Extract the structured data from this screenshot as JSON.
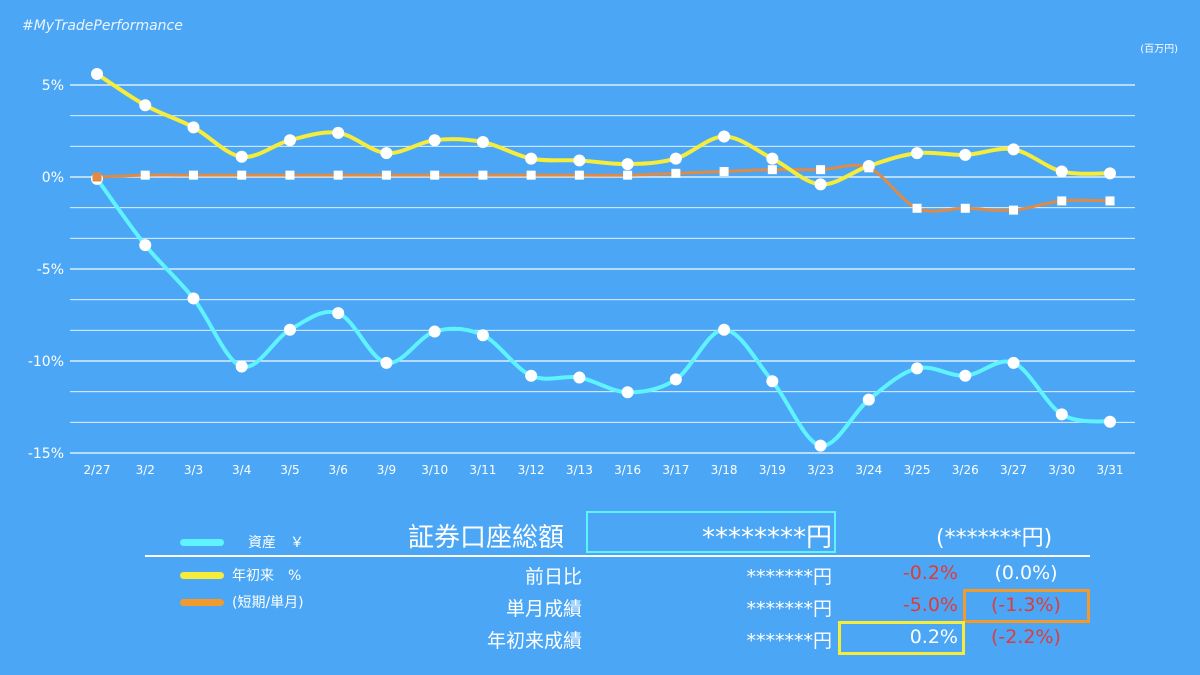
{
  "header": {
    "hashtag": "#MyTradePerformance",
    "unit": "(百万円)"
  },
  "colors": {
    "background": "#4ba7f5",
    "asset_line": "#5ef3ff",
    "ytd_line": "#f5ec3b",
    "short_line": "#e08a45",
    "negative": "#e03a3a"
  },
  "chart_data": {
    "type": "line",
    "categories": [
      "2/27",
      "3/2",
      "3/3",
      "3/4",
      "3/5",
      "3/6",
      "3/9",
      "3/10",
      "3/11",
      "3/12",
      "3/13",
      "3/16",
      "3/17",
      "3/18",
      "3/19",
      "3/23",
      "3/24",
      "3/25",
      "3/26",
      "3/27",
      "3/30",
      "3/31"
    ],
    "ylim": [
      -15,
      5
    ],
    "yticks": [
      5,
      0,
      -5,
      -10,
      -15
    ],
    "ytick_labels": [
      "5%",
      "0%",
      "-5%",
      "-10%",
      "-15%"
    ],
    "grid": true,
    "series": [
      {
        "name": "資産 ¥",
        "key": "asset",
        "marker": "circle",
        "values": [
          -0.1,
          -3.7,
          -6.6,
          -10.3,
          -8.3,
          -7.4,
          -10.1,
          -8.4,
          -8.6,
          -10.8,
          -10.9,
          -11.7,
          -11.0,
          -8.3,
          -11.1,
          -14.6,
          -12.1,
          -10.4,
          -10.8,
          -10.1,
          -12.9,
          -13.3
        ]
      },
      {
        "name": "年初来 %",
        "key": "ytd",
        "marker": "circle",
        "values": [
          5.6,
          3.9,
          2.7,
          1.1,
          2.0,
          2.4,
          1.3,
          2.0,
          1.9,
          1.0,
          0.9,
          0.7,
          1.0,
          2.2,
          1.0,
          -0.4,
          0.6,
          1.3,
          1.2,
          1.5,
          0.3,
          0.2
        ]
      },
      {
        "name": "(短期/単月)",
        "key": "short",
        "marker": "square",
        "values": [
          0.0,
          0.1,
          0.1,
          0.1,
          0.1,
          0.1,
          0.1,
          0.1,
          0.1,
          0.1,
          0.1,
          0.1,
          0.2,
          0.3,
          0.4,
          0.4,
          0.5,
          -1.7,
          -1.7,
          -1.8,
          -1.3,
          -1.3
        ]
      }
    ]
  },
  "legend": [
    {
      "label": "資産　￥",
      "color": "#5ef3ff"
    },
    {
      "label": "年初来　%",
      "color": "#f5ec3b"
    },
    {
      "label": "(短期/単月)",
      "color": "#f39a2d"
    }
  ],
  "summary": {
    "total_label": "証券口座総額",
    "total_value": "********円",
    "total_sub": "(*******円)",
    "rows": [
      {
        "label": "前日比",
        "amount": "*******円",
        "pct": "-0.2%",
        "sub": "(0.0%)"
      },
      {
        "label": "単月成績",
        "amount": "*******円",
        "pct": "-5.0%",
        "sub": "(-1.3%)"
      },
      {
        "label": "年初来成績",
        "amount": "*******円",
        "pct": "0.2%",
        "sub": "(-2.2%)"
      }
    ]
  }
}
